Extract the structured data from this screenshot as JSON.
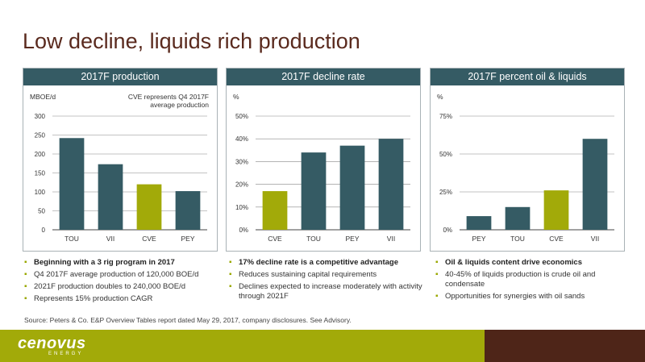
{
  "title": "Low decline, liquids rich production",
  "colors": {
    "header": "#355b64",
    "bar_default": "#355b64",
    "bar_highlight": "#a2aa09",
    "title": "#5a2a1e",
    "footer_green": "#a2aa09",
    "footer_brown": "#4e2518"
  },
  "chart_data": [
    {
      "type": "bar",
      "title": "2017F production",
      "ylabel": "MBOE/d",
      "annotation": "CVE represents Q4 2017F\naverage production",
      "categories": [
        "TOU",
        "VII",
        "CVE",
        "PEY"
      ],
      "values": [
        242,
        173,
        120,
        102
      ],
      "highlight": "CVE",
      "ylim": [
        0,
        300
      ],
      "yticks": [
        0,
        50,
        100,
        150,
        200,
        250,
        300
      ],
      "ytick_labels": [
        "0",
        "50",
        "100",
        "150",
        "200",
        "250",
        "300"
      ],
      "grid": true
    },
    {
      "type": "bar",
      "title": "2017F decline rate",
      "ylabel": "%",
      "annotation": "",
      "categories": [
        "CVE",
        "TOU",
        "PEY",
        "VII"
      ],
      "values": [
        17,
        34,
        37,
        40
      ],
      "highlight": "CVE",
      "ylim": [
        0,
        50
      ],
      "yticks": [
        0,
        10,
        20,
        30,
        40,
        50
      ],
      "ytick_labels": [
        "0%",
        "10%",
        "20%",
        "30%",
        "40%",
        "50%"
      ],
      "grid": true
    },
    {
      "type": "bar",
      "title": "2017F percent oil & liquids",
      "ylabel": "%",
      "annotation": "",
      "categories": [
        "PEY",
        "TOU",
        "CVE",
        "VII"
      ],
      "values": [
        9,
        15,
        26,
        60
      ],
      "highlight": "CVE",
      "ylim": [
        0,
        75
      ],
      "yticks": [
        0,
        25,
        50,
        75
      ],
      "ytick_labels": [
        "0%",
        "25%",
        "50%",
        "75%"
      ],
      "grid": true
    }
  ],
  "bullets": [
    [
      {
        "text": "Beginning with a 3 rig program in 2017",
        "bold": true
      },
      {
        "text": "Q4 2017F average production of 120,000 BOE/d",
        "bold": false
      },
      {
        "text": "2021F production doubles to 240,000 BOE/d",
        "bold": false
      },
      {
        "text": "Represents 15% production CAGR",
        "bold": false
      }
    ],
    [
      {
        "text": "17% decline rate is a competitive advantage",
        "bold": true
      },
      {
        "text": "Reduces sustaining capital requirements",
        "bold": false
      },
      {
        "text": "Declines expected to increase moderately with activity through 2021F",
        "bold": false
      }
    ],
    [
      {
        "text": "Oil & liquids content drive economics",
        "bold": true
      },
      {
        "text": "40-45% of liquids production is crude oil and condensate",
        "bold": false
      },
      {
        "text": "Opportunities for synergies with oil sands",
        "bold": false
      }
    ]
  ],
  "source": "Source: Peters & Co. E&P Overview Tables report dated May 29, 2017, company disclosures. See Advisory.",
  "logo": {
    "name": "cenovus",
    "sub": "ENERGY"
  }
}
